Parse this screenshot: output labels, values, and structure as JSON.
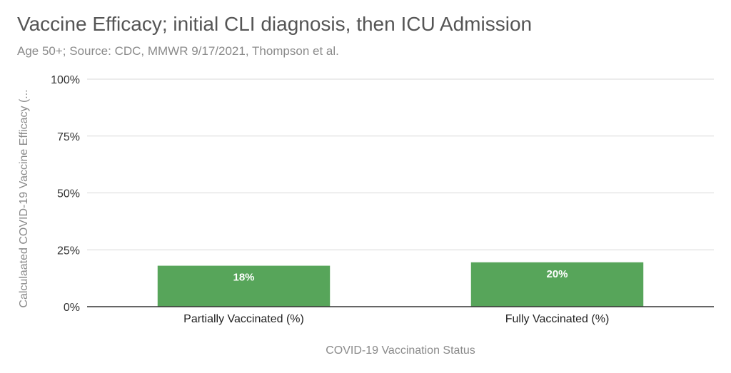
{
  "chart_data": {
    "type": "bar",
    "title": "Vaccine Efficacy; initial CLI diagnosis, then ICU Admission",
    "subtitle": "Age 50+; Source: CDC, MMWR 9/17/2021, Thompson et al.",
    "xlabel": "COVID-19 Vaccination Status",
    "ylabel": "Calculaated COVID-19 Vaccine Efficacy (...",
    "categories": [
      "Partially Vaccinated (%)",
      "Fully Vaccinated (%)"
    ],
    "values": [
      18,
      19.5
    ],
    "data_labels": [
      "18%",
      "20%"
    ],
    "ylim": [
      0,
      100
    ],
    "yticks": [
      0,
      25,
      50,
      75,
      100
    ],
    "ytick_labels": [
      "0%",
      "25%",
      "50%",
      "75%",
      "100%"
    ],
    "grid": true,
    "legend": "none",
    "colors": {
      "bar": "#57a55a",
      "grid": "#d9d9d9",
      "axis": "#333333"
    }
  }
}
